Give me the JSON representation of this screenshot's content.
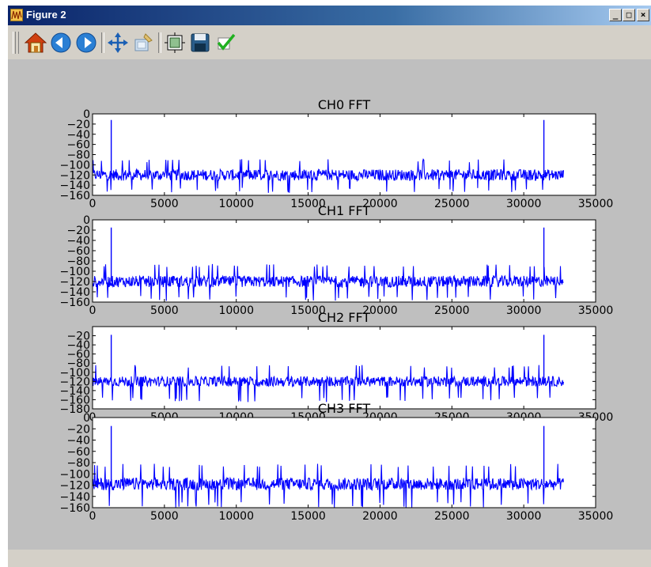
{
  "window": {
    "title": "Figure 2",
    "controls": [
      "_",
      "□",
      "×"
    ]
  },
  "toolbar": {
    "buttons": [
      {
        "name": "home",
        "icon": "home-icon"
      },
      {
        "name": "back",
        "icon": "back-arrow-icon"
      },
      {
        "name": "forward",
        "icon": "forward-arrow-icon"
      },
      {
        "name": "pan",
        "icon": "move-icon"
      },
      {
        "name": "zoom",
        "icon": "zoom-rect-icon"
      },
      {
        "name": "subplots",
        "icon": "subplots-icon"
      },
      {
        "name": "save",
        "icon": "save-floppy-icon"
      },
      {
        "name": "edit",
        "icon": "checkmark-icon"
      }
    ]
  },
  "colors": {
    "line": "#0000ff",
    "figure_bg": "#bfbfbf",
    "axes_bg": "#ffffff"
  },
  "chart_data": [
    {
      "type": "line",
      "title": "CH0 FFT",
      "xlim": [
        0,
        35000
      ],
      "ylim": [
        -160,
        0
      ],
      "xticks": [
        0,
        5000,
        10000,
        15000,
        20000,
        25000,
        30000,
        35000
      ],
      "yticks": [
        0,
        -20,
        -40,
        -60,
        -80,
        -100,
        -120,
        -140,
        -160
      ],
      "x_range_of_data": [
        0,
        32768
      ],
      "noise_floor_mean": -120,
      "noise_floor_min": -155,
      "noise_floor_max": -95,
      "peaks": [
        {
          "x": 1300,
          "y": -12
        },
        {
          "x": 31400,
          "y": -12
        }
      ]
    },
    {
      "type": "line",
      "title": "CH1 FFT",
      "xlim": [
        0,
        35000
      ],
      "ylim": [
        -160,
        0
      ],
      "xticks": [
        0,
        5000,
        10000,
        15000,
        20000,
        25000,
        30000,
        35000
      ],
      "yticks": [
        0,
        -20,
        -40,
        -60,
        -80,
        -100,
        -120,
        -140,
        -160
      ],
      "x_range_of_data": [
        0,
        32768
      ],
      "noise_floor_mean": -120,
      "noise_floor_min": -158,
      "noise_floor_max": -92,
      "peaks": [
        {
          "x": 1300,
          "y": -15
        },
        {
          "x": 31400,
          "y": -15
        }
      ]
    },
    {
      "type": "line",
      "title": "CH2 FFT",
      "xlim": [
        0,
        35000
      ],
      "ylim": [
        -180,
        0
      ],
      "xticks": [
        0,
        5000,
        10000,
        15000,
        20000,
        25000,
        30000,
        35000
      ],
      "yticks": [
        -20,
        -40,
        -60,
        -80,
        -100,
        -120,
        -140,
        -160,
        -180
      ],
      "x_range_of_data": [
        0,
        32768
      ],
      "noise_floor_mean": -120,
      "noise_floor_min": -165,
      "noise_floor_max": -90,
      "peaks": [
        {
          "x": 1300,
          "y": -18
        },
        {
          "x": 31400,
          "y": -18
        }
      ]
    },
    {
      "type": "line",
      "title": "CH3 FFT",
      "xlim": [
        0,
        35000
      ],
      "ylim": [
        -160,
        0
      ],
      "xticks": [
        0,
        5000,
        10000,
        15000,
        20000,
        25000,
        30000,
        35000
      ],
      "yticks": [
        0,
        -20,
        -40,
        -60,
        -80,
        -100,
        -120,
        -140,
        -160
      ],
      "x_range_of_data": [
        0,
        32768
      ],
      "noise_floor_mean": -118,
      "noise_floor_min": -160,
      "noise_floor_max": -88,
      "peaks": [
        {
          "x": 1300,
          "y": -15
        },
        {
          "x": 31400,
          "y": -15
        }
      ]
    }
  ]
}
